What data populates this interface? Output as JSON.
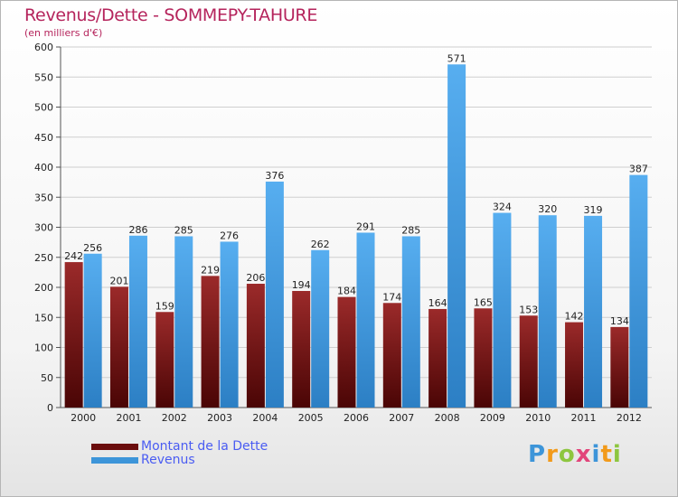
{
  "chart_data": {
    "type": "bar",
    "title": "Revenus/Dette - SOMMEPY-TAHURE",
    "subtitle": "(en milliers d'€)",
    "categories": [
      "2000",
      "2001",
      "2002",
      "2003",
      "2004",
      "2005",
      "2006",
      "2007",
      "2008",
      "2009",
      "2010",
      "2011",
      "2012"
    ],
    "series": [
      {
        "name": "Montant de la Dette",
        "color": "#6b0d0d",
        "values": [
          242,
          201,
          159,
          219,
          206,
          194,
          184,
          174,
          164,
          165,
          153,
          142,
          134
        ]
      },
      {
        "name": "Revenus",
        "color": "#3d95d9",
        "values": [
          256,
          286,
          285,
          276,
          376,
          262,
          291,
          285,
          571,
          324,
          320,
          319,
          387
        ]
      }
    ],
    "ylim": [
      0,
      600
    ],
    "yticks": [
      0,
      50,
      100,
      150,
      200,
      250,
      300,
      350,
      400,
      450,
      500,
      550,
      600
    ],
    "xlabel": "",
    "ylabel": "",
    "grid": true,
    "legend_position": "bottom-left"
  },
  "brand": {
    "letters": [
      "P",
      "r",
      "o",
      "x",
      "i",
      "t",
      "i"
    ],
    "colors": [
      "#3d95d9",
      "#f29a1a",
      "#8dc63f",
      "#e2457a",
      "#3d95d9",
      "#f29a1a",
      "#8dc63f"
    ]
  }
}
